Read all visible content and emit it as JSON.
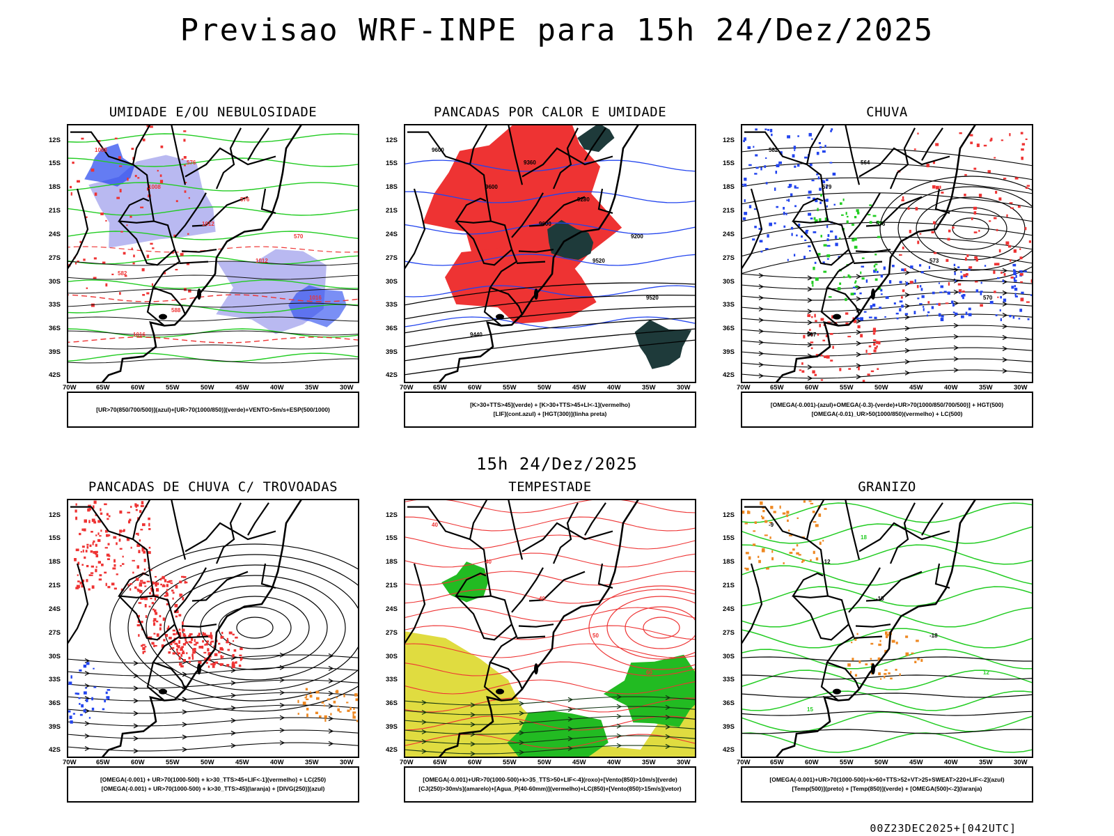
{
  "title": "Previsao WRF-INPE  para 15h 24/Dez/2025",
  "subtitle": "15h 24/Dez/2025",
  "footer": "00Z23DEC2025+[042UTC]",
  "axes": {
    "lat_labels": [
      "12S",
      "15S",
      "18S",
      "21S",
      "24S",
      "27S",
      "30S",
      "33S",
      "36S",
      "39S",
      "42S"
    ],
    "lon_labels": [
      "70W",
      "65W",
      "60W",
      "55W",
      "50W",
      "45W",
      "40W",
      "35W",
      "30W"
    ]
  },
  "colors": {
    "green": "#22cc22",
    "red": "#ee3333",
    "blue": "#2244ee",
    "lavender": "#a8a8ee",
    "yellow": "#e0dc40",
    "darkteal": "#1e3a3a",
    "orange": "#ee8822"
  },
  "panels": [
    {
      "title": "UMIDADE E/OU NEBULOSIDADE",
      "legend": [
        "[UR>70(850/700/500)](azul)+[UR>70(1000/850)](verde)+VENTO>5m/s+ESP(500/1000)"
      ],
      "contour_labels": [
        "1008",
        "1008",
        "1012",
        "1012",
        "1016",
        "1016",
        "576",
        "576",
        "570",
        "582",
        "588"
      ]
    },
    {
      "title": "PANCADAS POR CALOR E UMIDADE",
      "legend": [
        "[K>30+TTS>45](verde) + [K>30+TTS>45+LI<-1](vermelho)",
        "[LIF](cont.azul) + [HGT(300)](linha preta)"
      ],
      "contour_labels": [
        "9600",
        "9600",
        "9600",
        "9520",
        "9520",
        "9440",
        "9360",
        "9280",
        "9200"
      ]
    },
    {
      "title": "CHUVA",
      "legend": [
        "[OMEGA(-0.001)-(azul)+OMEGA(-0.3)-(verde)+UR>70(1000/850/700/500)] + HGT(500)",
        "[OMEGA(-0.01)_UR>50(1000/850)(vermelho) + LC(500)"
      ],
      "contour_labels": [
        "582",
        "579",
        "576",
        "573",
        "570",
        "567",
        "564"
      ]
    },
    {
      "title": "PANCADAS DE CHUVA C/ TROVOADAS",
      "legend": [
        "[OMEGA(-0.001) + UR>70(1000-500) + k>30_TTS>45+LIF<-1](vermelho) + LC(250)",
        "[OMEGA(-0.001) + UR>70(1000-500) + k>30_TTS>45](laranja) + [DIVG(250)](azul)"
      ],
      "contour_labels": []
    },
    {
      "title": "TEMPESTADE",
      "legend": [
        "[OMEGA(-0.001)+UR>70(1000-500)+k>35_TTS>50+LIF<-4](roxo)+[Vento(850)>10m/s](verde)",
        "[CJ(250)>30m/s](amarelo)+[Agua_P(40-60mm)](vermelho)+LC(850)+[Vento(850)>15m/s](vetor)"
      ],
      "contour_labels": [
        "40",
        "40",
        "40",
        "50",
        "60"
      ]
    },
    {
      "title": "GRANIZO",
      "legend": [
        "[OMEGA(-0.001)+UR>70(1000-500)+k>60+TTS>52+VT>25+SWEAT>220+LIF<-2](azul)",
        "[Temp(500)](preto) + [Temp(850)](verde) + [OMEGA(500)<-2](laranja)"
      ],
      "contour_labels": [
        "-9",
        "-12",
        "-15",
        "-18",
        "12",
        "15",
        "18"
      ]
    }
  ]
}
